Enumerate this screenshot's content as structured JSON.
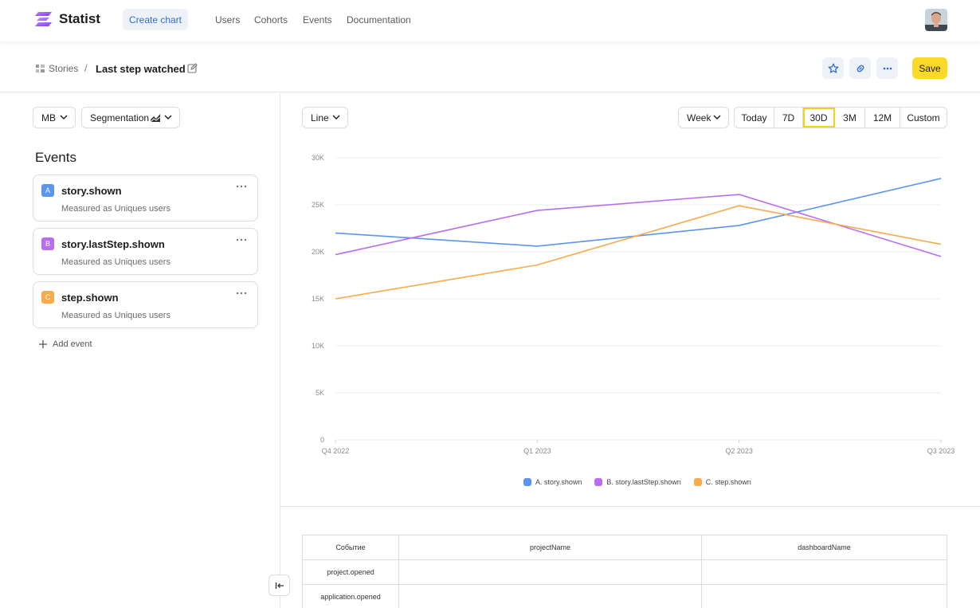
{
  "app": {
    "name": "Statist",
    "brand_color": "#8b5cf6"
  },
  "topnav": {
    "create_chart": "Create chart",
    "links": [
      "Users",
      "Cohorts",
      "Events",
      "Documentation"
    ]
  },
  "header": {
    "breadcrumb_root": "Stories",
    "separator": "/",
    "title": "Last step watched",
    "save_label": "Save",
    "accent_color": "#fbd926"
  },
  "left": {
    "metric_dropdown": "MB",
    "segmentation_dropdown": "Segmentation",
    "events_heading": "Events",
    "events": [
      {
        "letter": "A",
        "name": "story.shown",
        "subtitle": "Measured as Uniques users",
        "color": "#5b95f0"
      },
      {
        "letter": "B",
        "name": "story.lastStep.shown",
        "subtitle": "Measured as Uniques users",
        "color": "#b96ef0"
      },
      {
        "letter": "C",
        "name": "step.shown",
        "subtitle": "Measured as Uniques users",
        "color": "#f7ab4b"
      }
    ],
    "add_event": "Add event"
  },
  "controls": {
    "chart_type": "Line",
    "interval": "Week",
    "ranges": [
      "Today",
      "7D",
      "30D",
      "3M",
      "12M",
      "Custom"
    ],
    "active_range": "30D"
  },
  "chart_data": {
    "type": "line",
    "x": [
      "Q4 2022",
      "Q1 2023",
      "Q2 2023",
      "Q3 2023"
    ],
    "y_ticks": [
      "0",
      "5K",
      "10K",
      "15K",
      "20K",
      "25K",
      "30K"
    ],
    "ylim": [
      0,
      30000
    ],
    "grid": true,
    "legend_position": "bottom",
    "series": [
      {
        "name": "A. story.shown",
        "color": "#5b95f0",
        "values": [
          22000,
          20600,
          22800,
          27800
        ]
      },
      {
        "name": "B. story.lastStep.shown",
        "color": "#b96ef0",
        "values": [
          19700,
          24400,
          26100,
          19500
        ]
      },
      {
        "name": "C. step.shown",
        "color": "#f7ab4b",
        "values": [
          15000,
          18600,
          24900,
          20800
        ]
      }
    ]
  },
  "table": {
    "headers": [
      "Событие",
      "projectName",
      "dashboardName"
    ],
    "rows": [
      [
        "project.opened",
        "",
        ""
      ],
      [
        "application.opened",
        "",
        ""
      ]
    ]
  }
}
